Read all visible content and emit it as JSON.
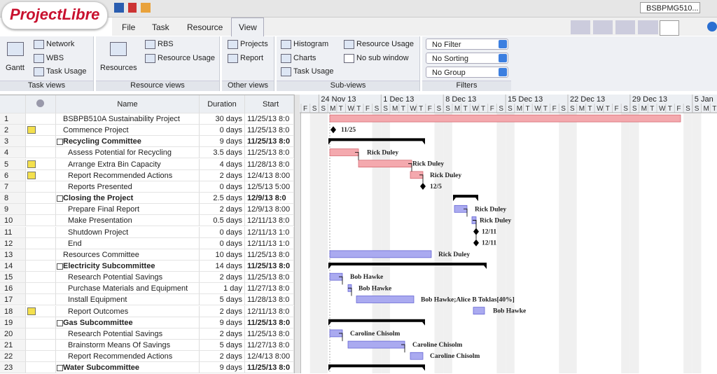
{
  "app": {
    "logo": "ProjectLibre",
    "menus": [
      "File",
      "Task",
      "Resource",
      "View"
    ],
    "project": "BSBPMG510..."
  },
  "ribbon": {
    "task_views": {
      "label": "Task views",
      "gantt": "Gantt",
      "items": [
        "Network",
        "WBS",
        "Task Usage"
      ]
    },
    "resource_views": {
      "label": "Resource views",
      "resources": "Resources",
      "items": [
        "RBS",
        "Resource Usage"
      ]
    },
    "other_views": {
      "label": "Other views",
      "items": [
        "Projects",
        "Report"
      ]
    },
    "sub_views": {
      "label": "Sub-views",
      "left": [
        "Histogram",
        "Charts",
        "Task Usage"
      ],
      "right": [
        "Resource Usage",
        "No sub window"
      ]
    },
    "filters": {
      "label": "Filters",
      "items": [
        "No Filter",
        "No Sorting",
        "No Group"
      ]
    }
  },
  "table": {
    "headers": [
      "Name",
      "Duration",
      "Start"
    ],
    "rows": [
      {
        "id": "1",
        "name": "BSBPB510A Sustainability Project",
        "duration": "30 days",
        "start": "11/25/13 8:0",
        "level": 0
      },
      {
        "id": "2",
        "name": "Commence Project",
        "duration": "0 days",
        "start": "11/25/13 8:0",
        "level": 0,
        "note": true,
        "label": "11/25"
      },
      {
        "id": "3",
        "name": "Recycling Committee",
        "duration": "9 days",
        "start": "11/25/13 8:0",
        "level": 0,
        "summary": true
      },
      {
        "id": "4",
        "name": "Assess Potential for Recycling",
        "duration": "3.5 days",
        "start": "11/25/13 8:0",
        "level": 1,
        "label": "Rick Duley"
      },
      {
        "id": "5",
        "name": "Arrange Extra Bin Capacity",
        "duration": "4 days",
        "start": "11/28/13 8:0",
        "level": 1,
        "note": true,
        "label": "Rick Duley"
      },
      {
        "id": "6",
        "name": "Report Recommended Actions",
        "duration": "2 days",
        "start": "12/4/13 8:00",
        "level": 1,
        "note": true,
        "label": "Rick Duley"
      },
      {
        "id": "7",
        "name": "Reports Presented",
        "duration": "0 days",
        "start": "12/5/13 5:00",
        "level": 1,
        "label": "12/5"
      },
      {
        "id": "8",
        "name": "Closing the Project",
        "duration": "2.5 days",
        "start": "12/9/13 8:0",
        "level": 0,
        "summary": true
      },
      {
        "id": "9",
        "name": "Prepare Final Report",
        "duration": "2 days",
        "start": "12/9/13 8:00",
        "level": 1,
        "label": "Rick Duley"
      },
      {
        "id": "10",
        "name": "Make Presentation",
        "duration": "0.5 days",
        "start": "12/11/13 8:0",
        "level": 1,
        "label": "Rick Duley"
      },
      {
        "id": "11",
        "name": "Shutdown Project",
        "duration": "0 days",
        "start": "12/11/13 1:0",
        "level": 1,
        "label": "12/11"
      },
      {
        "id": "12",
        "name": "End",
        "duration": "0 days",
        "start": "12/11/13 1:0",
        "level": 1,
        "label": "12/11"
      },
      {
        "id": "13",
        "name": "Resources Committee",
        "duration": "10 days",
        "start": "11/25/13 8:0",
        "level": 0,
        "label": "Rick Duley"
      },
      {
        "id": "14",
        "name": "Electricity Subcommittee",
        "duration": "14 days",
        "start": "11/25/13 8:0",
        "level": 0,
        "summary": true
      },
      {
        "id": "15",
        "name": "Research Potential Savings",
        "duration": "2 days",
        "start": "11/25/13 8:0",
        "level": 1,
        "label": "Bob Hawke"
      },
      {
        "id": "16",
        "name": "Purchase Materials and Equipment",
        "duration": "1 day",
        "start": "11/27/13 8:0",
        "level": 1,
        "label": "Bob Hawke"
      },
      {
        "id": "17",
        "name": "Install Equipment",
        "duration": "5 days",
        "start": "11/28/13 8:0",
        "level": 1,
        "label": "Bob Hawke;Alice B Toklas[40%]"
      },
      {
        "id": "18",
        "name": "Report Outcomes",
        "duration": "2 days",
        "start": "12/11/13 8:0",
        "level": 1,
        "note": true,
        "label": "Bob Hawke"
      },
      {
        "id": "19",
        "name": "Gas Subcommittee",
        "duration": "9 days",
        "start": "11/25/13 8:0",
        "level": 0,
        "summary": true
      },
      {
        "id": "20",
        "name": "Research Potential Savings",
        "duration": "2 days",
        "start": "11/25/13 8:0",
        "level": 1,
        "label": "Caroline Chisolm"
      },
      {
        "id": "21",
        "name": "Brainstorm Means Of Savings",
        "duration": "5 days",
        "start": "11/27/13 8:0",
        "level": 1,
        "label": "Caroline Chisolm"
      },
      {
        "id": "22",
        "name": "Report Recommended Actions",
        "duration": "2 days",
        "start": "12/4/13 8:00",
        "level": 1,
        "label": "Caroline Chisolm"
      },
      {
        "id": "23",
        "name": "Water Subcommittee",
        "duration": "9 days",
        "start": "11/25/13 8:0",
        "level": 0,
        "summary": true
      }
    ]
  },
  "timeline": {
    "weeks": [
      "24 Nov 13",
      "1 Dec 13",
      "8 Dec 13",
      "15 Dec 13",
      "22 Dec 13",
      "29 Dec 13",
      "5 Jan"
    ],
    "day_letters": [
      "F",
      "S",
      "S",
      "M",
      "T",
      "W",
      "T"
    ]
  }
}
